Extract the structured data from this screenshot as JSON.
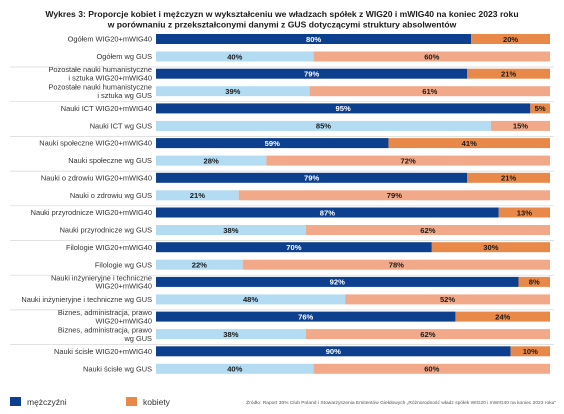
{
  "chart_data": {
    "type": "bar",
    "orientation": "horizontal",
    "stacked": "percent",
    "title_lines": [
      "Wykres 3: Proporcje kobiet i mężczyzn w wykształceniu we władzach spółek z WIG20 i mWIG40 na koniec 2023 roku",
      "w porównaniu z przekształconymi danymi z GUS dotyczącymi struktury absolwentów"
    ],
    "categories": [
      [
        "Ogółem WIG20+mWIG40"
      ],
      [
        "Ogółem wg GUS"
      ],
      [
        "Pozostałe nauki humanistyczne",
        "i sztuka WIG20+mWIG40"
      ],
      [
        "Pozostałe nauki humanistyczne",
        "i sztuka wg GUS"
      ],
      [
        "Nauki ICT WIG20+mWIG40"
      ],
      [
        "Nauki ICT wg GUS"
      ],
      [
        "Nauki społeczne WIG20+mWIG40"
      ],
      [
        "Nauki społeczne wg GUS"
      ],
      [
        "Nauki o zdrowiu WIG20+mWIG40"
      ],
      [
        "Nauki o zdrowiu wg GUS"
      ],
      [
        "Nauki przyrodnicze WIG20+mWIG40"
      ],
      [
        "Nauki przyrodnicze wg GUS"
      ],
      [
        "Filologie WIG20+mWIG40"
      ],
      [
        "Filologie wg GUS"
      ],
      [
        "Nauki inżynieryjne i techniczne",
        "WIG20+mWIG40"
      ],
      [
        "Nauki inżynieryjne i techniczne wg GUS"
      ],
      [
        "Biznes, administracja, prawo",
        "WIG20+mWIG40"
      ],
      [
        "Biznes, administracja, prawo",
        "wg GUS"
      ],
      [
        "Nauki ścisłe WIG20+mWIG40"
      ],
      [
        "Nauki ścisłe wg GUS"
      ]
    ],
    "series": [
      {
        "name": "mężczyźni",
        "values": [
          80,
          40,
          79,
          39,
          95,
          85,
          59,
          28,
          79,
          21,
          87,
          38,
          70,
          22,
          92,
          48,
          76,
          38,
          90,
          40
        ]
      },
      {
        "name": "kobiety",
        "values": [
          20,
          60,
          21,
          61,
          5,
          15,
          41,
          72,
          21,
          79,
          13,
          62,
          30,
          78,
          8,
          52,
          24,
          62,
          10,
          60
        ]
      }
    ],
    "value_suffix": "%",
    "xlim": [
      0,
      100
    ],
    "grid": false,
    "legend_position": "bottom-left",
    "colors": {
      "wig_male": "#0d3f8f",
      "wig_female": "#e8894a",
      "gus_male": "#b3dcf2",
      "gus_female": "#f2a98a",
      "label_on_dark": "#ffffff",
      "label_on_light": "#1a1a1a",
      "separator": "#d7d7d7"
    },
    "legend": {
      "male_label": "mężczyźni",
      "female_label": "kobiety"
    },
    "source": "Źródło: Raport 30% Club Poland i Stowarzyszenia Emitentów Giełdowych „Różnorodność władz spółek WIG20 i mWIG40 na koniec 2023 roku”"
  }
}
